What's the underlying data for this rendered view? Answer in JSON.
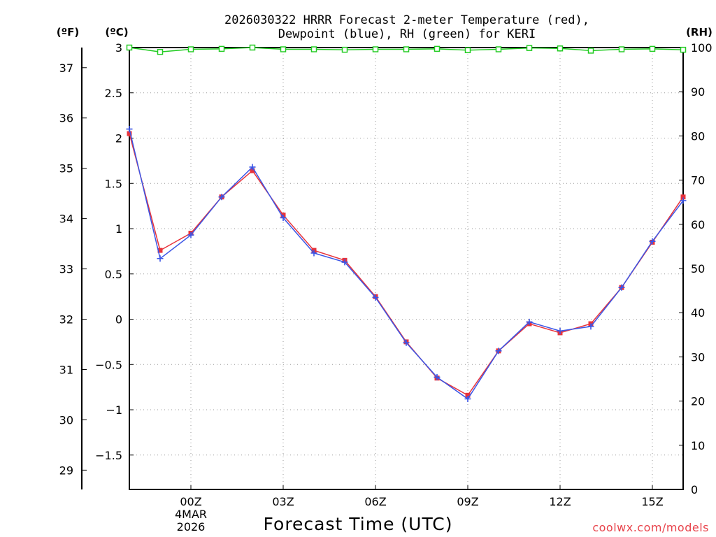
{
  "chart_data": {
    "type": "line",
    "title_line1": "2026030322 HRRR Forecast 2-meter Temperature (red),",
    "title_line2": "Dewpoint (blue), RH (green) for KERI",
    "xlabel": "Forecast Time (UTC)",
    "credit": "coolwx.com/models",
    "units": {
      "fahrenheit": "(ºF)",
      "celsius": "(ºC)",
      "rh": "(RH)"
    },
    "x_start_hour": -2,
    "x_end_hour": 16,
    "celsius_range": [
      -1.88,
      3.0
    ],
    "rh_range": [
      0,
      100
    ],
    "x_ticks": [
      {
        "hour": 0,
        "label": "00Z",
        "sub1": "4MAR",
        "sub2": "2026"
      },
      {
        "hour": 3,
        "label": "03Z"
      },
      {
        "hour": 6,
        "label": "06Z"
      },
      {
        "hour": 9,
        "label": "09Z"
      },
      {
        "hour": 12,
        "label": "12Z"
      },
      {
        "hour": 15,
        "label": "15Z"
      }
    ],
    "celsius_ticks": [
      {
        "value": -1.5,
        "label": "−1.5"
      },
      {
        "value": -1,
        "label": "−1"
      },
      {
        "value": -0.5,
        "label": "−0.5"
      },
      {
        "value": 0,
        "label": "0"
      },
      {
        "value": 0.5,
        "label": "0.5"
      },
      {
        "value": 1,
        "label": "1"
      },
      {
        "value": 1.5,
        "label": "1.5"
      },
      {
        "value": 2,
        "label": "2"
      },
      {
        "value": 2.5,
        "label": "2.5"
      },
      {
        "value": 3,
        "label": "3"
      }
    ],
    "fahrenheit_ticks": [
      {
        "value": 29,
        "label": "29"
      },
      {
        "value": 30,
        "label": "30"
      },
      {
        "value": 31,
        "label": "31"
      },
      {
        "value": 32,
        "label": "32"
      },
      {
        "value": 33,
        "label": "33"
      },
      {
        "value": 34,
        "label": "34"
      },
      {
        "value": 35,
        "label": "35"
      },
      {
        "value": 36,
        "label": "36"
      },
      {
        "value": 37,
        "label": "37"
      }
    ],
    "rh_ticks": [
      {
        "value": 0,
        "label": "0"
      },
      {
        "value": 10,
        "label": "10"
      },
      {
        "value": 20,
        "label": "20"
      },
      {
        "value": 30,
        "label": "30"
      },
      {
        "value": 40,
        "label": "40"
      },
      {
        "value": 50,
        "label": "50"
      },
      {
        "value": 60,
        "label": "60"
      },
      {
        "value": 70,
        "label": "70"
      },
      {
        "value": 80,
        "label": "80"
      },
      {
        "value": 90,
        "label": "90"
      },
      {
        "value": 100,
        "label": "100"
      }
    ],
    "series": [
      {
        "name": "Temperature",
        "axis": "celsius",
        "color": "#e8333b",
        "marker": "square",
        "x": [
          -2,
          -1,
          0,
          1,
          2,
          3,
          4,
          5,
          6,
          7,
          8,
          9,
          10,
          11,
          12,
          13,
          14,
          15,
          16
        ],
        "values": [
          2.05,
          0.76,
          0.95,
          1.35,
          1.64,
          1.15,
          0.76,
          0.65,
          0.25,
          -0.25,
          -0.65,
          -0.84,
          -0.35,
          -0.05,
          -0.15,
          -0.05,
          0.35,
          0.85,
          1.35
        ]
      },
      {
        "name": "Dewpoint",
        "axis": "celsius",
        "color": "#3b55e6",
        "marker": "plus",
        "x": [
          -2,
          -1,
          0,
          1,
          2,
          3,
          4,
          5,
          6,
          7,
          8,
          9,
          10,
          11,
          12,
          13,
          14,
          15,
          16
        ],
        "values": [
          2.1,
          0.67,
          0.93,
          1.35,
          1.68,
          1.12,
          0.73,
          0.63,
          0.24,
          -0.26,
          -0.64,
          -0.88,
          -0.35,
          -0.03,
          -0.13,
          -0.08,
          0.35,
          0.86,
          1.31
        ]
      },
      {
        "name": "RH",
        "axis": "rh",
        "color": "#22cc22",
        "marker": "hollow-square",
        "x": [
          -2,
          -1,
          0,
          1,
          2,
          3,
          4,
          5,
          6,
          7,
          8,
          9,
          10,
          11,
          12,
          13,
          14,
          15,
          16
        ],
        "values": [
          100,
          99,
          99.6,
          99.7,
          100,
          99.6,
          99.6,
          99.5,
          99.6,
          99.6,
          99.7,
          99.4,
          99.6,
          99.9,
          99.8,
          99.3,
          99.6,
          99.7,
          99.5
        ]
      }
    ]
  }
}
